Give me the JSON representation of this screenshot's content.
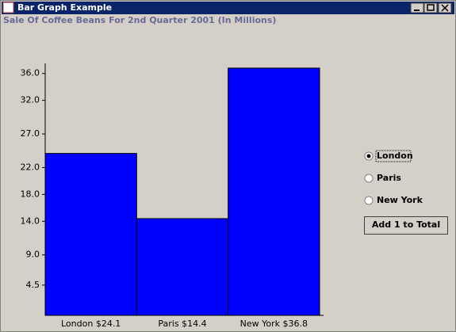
{
  "window": {
    "title": "Bar Graph Example"
  },
  "chart_data": {
    "type": "bar",
    "title": "Sale Of Coffee Beans For 2nd Quarter 2001 (In Millions)",
    "categories": [
      "London $24.1",
      "Paris $14.4",
      "New York $36.8"
    ],
    "values": [
      24.1,
      14.4,
      36.8
    ],
    "color": "#0000ff",
    "ylim": [
      0,
      37.5
    ],
    "yticks": [
      {
        "value": 4.5,
        "label": "4.5"
      },
      {
        "value": 9,
        "label": "9.0"
      },
      {
        "value": 14,
        "label": "14.0"
      },
      {
        "value": 18,
        "label": "18.0"
      },
      {
        "value": 22,
        "label": "22.0"
      },
      {
        "value": 27,
        "label": "27.0"
      },
      {
        "value": 32,
        "label": "32.0"
      },
      {
        "value": 36,
        "label": "36.0"
      }
    ]
  },
  "controls": {
    "radios": [
      "London",
      "Paris",
      "New York"
    ],
    "selected": 0,
    "button": "Add 1 to Total"
  }
}
